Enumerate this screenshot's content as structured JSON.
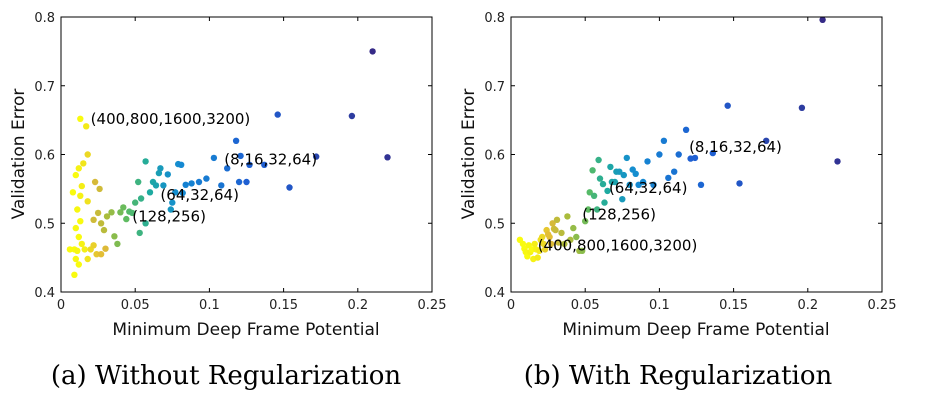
{
  "chart_data": [
    {
      "type": "scatter",
      "caption": "(a) Without Regularization",
      "xlabel": "Minimum Deep Frame Potential",
      "ylabel": "Validation Error",
      "xlim": [
        0,
        0.25
      ],
      "ylim": [
        0.4,
        0.8
      ],
      "xticks": [
        "0",
        "0.05",
        "0.1",
        "0.15",
        "0.2",
        "0.25"
      ],
      "yticks": [
        "0.4",
        "0.5",
        "0.6",
        "0.7",
        "0.8"
      ],
      "annotations": [
        {
          "text": "(400,800,1600,3200)",
          "x": 0.02,
          "y": 0.652
        },
        {
          "text": "(8,16,32,64)",
          "x": 0.11,
          "y": 0.593
        },
        {
          "text": "(64,32,64)",
          "x": 0.067,
          "y": 0.541
        },
        {
          "text": "(128,256)",
          "x": 0.048,
          "y": 0.51
        }
      ],
      "points": [
        [
          0.013,
          0.652,
          0.0
        ],
        [
          0.017,
          0.641,
          0.04
        ],
        [
          0.018,
          0.6,
          0.08
        ],
        [
          0.015,
          0.587,
          0.05
        ],
        [
          0.012,
          0.58,
          0.02
        ],
        [
          0.01,
          0.57,
          0.0
        ],
        [
          0.014,
          0.554,
          0.03
        ],
        [
          0.008,
          0.545,
          0.0
        ],
        [
          0.013,
          0.54,
          0.02
        ],
        [
          0.018,
          0.532,
          0.06
        ],
        [
          0.011,
          0.52,
          0.01
        ],
        [
          0.013,
          0.503,
          0.0
        ],
        [
          0.01,
          0.493,
          0.01
        ],
        [
          0.012,
          0.48,
          0.0
        ],
        [
          0.014,
          0.47,
          0.02
        ],
        [
          0.006,
          0.462,
          0.0
        ],
        [
          0.009,
          0.462,
          0.0
        ],
        [
          0.011,
          0.46,
          0.01
        ],
        [
          0.016,
          0.462,
          0.03
        ],
        [
          0.01,
          0.448,
          0.01
        ],
        [
          0.012,
          0.44,
          0.0
        ],
        [
          0.009,
          0.425,
          0.0
        ],
        [
          0.018,
          0.448,
          0.05
        ],
        [
          0.02,
          0.462,
          0.08
        ],
        [
          0.022,
          0.468,
          0.1
        ],
        [
          0.024,
          0.455,
          0.12
        ],
        [
          0.027,
          0.455,
          0.14
        ],
        [
          0.03,
          0.463,
          0.16
        ],
        [
          0.023,
          0.56,
          0.18
        ],
        [
          0.026,
          0.55,
          0.2
        ],
        [
          0.022,
          0.505,
          0.2
        ],
        [
          0.025,
          0.515,
          0.22
        ],
        [
          0.027,
          0.5,
          0.24
        ],
        [
          0.029,
          0.49,
          0.26
        ],
        [
          0.031,
          0.51,
          0.3
        ],
        [
          0.034,
          0.516,
          0.34
        ],
        [
          0.036,
          0.481,
          0.36
        ],
        [
          0.038,
          0.47,
          0.38
        ],
        [
          0.04,
          0.516,
          0.4
        ],
        [
          0.042,
          0.523,
          0.42
        ],
        [
          0.044,
          0.506,
          0.44
        ],
        [
          0.046,
          0.517,
          0.46
        ],
        [
          0.048,
          0.515,
          0.48
        ],
        [
          0.05,
          0.53,
          0.5
        ],
        [
          0.052,
          0.56,
          0.52
        ],
        [
          0.054,
          0.536,
          0.54
        ],
        [
          0.053,
          0.486,
          0.52
        ],
        [
          0.057,
          0.5,
          0.56
        ],
        [
          0.057,
          0.59,
          0.58
        ],
        [
          0.06,
          0.545,
          0.6
        ],
        [
          0.062,
          0.56,
          0.62
        ],
        [
          0.064,
          0.555,
          0.64
        ],
        [
          0.066,
          0.573,
          0.66
        ],
        [
          0.067,
          0.58,
          0.68
        ],
        [
          0.069,
          0.555,
          0.7
        ],
        [
          0.072,
          0.571,
          0.72
        ],
        [
          0.074,
          0.52,
          0.7
        ],
        [
          0.075,
          0.53,
          0.72
        ],
        [
          0.077,
          0.545,
          0.74
        ],
        [
          0.079,
          0.586,
          0.74
        ],
        [
          0.081,
          0.585,
          0.76
        ],
        [
          0.082,
          0.544,
          0.76
        ],
        [
          0.084,
          0.556,
          0.78
        ],
        [
          0.088,
          0.558,
          0.78
        ],
        [
          0.093,
          0.56,
          0.8
        ],
        [
          0.098,
          0.565,
          0.8
        ],
        [
          0.103,
          0.595,
          0.8
        ],
        [
          0.108,
          0.555,
          0.82
        ],
        [
          0.112,
          0.58,
          0.84
        ],
        [
          0.118,
          0.62,
          0.86
        ],
        [
          0.12,
          0.56,
          0.86
        ],
        [
          0.121,
          0.598,
          0.86
        ],
        [
          0.125,
          0.56,
          0.88
        ],
        [
          0.127,
          0.585,
          0.88
        ],
        [
          0.137,
          0.585,
          0.88
        ],
        [
          0.146,
          0.658,
          0.9
        ],
        [
          0.154,
          0.552,
          0.9
        ],
        [
          0.172,
          0.597,
          0.94
        ],
        [
          0.196,
          0.656,
          0.96
        ],
        [
          0.21,
          0.75,
          1.0
        ],
        [
          0.22,
          0.596,
          0.98
        ]
      ]
    },
    {
      "type": "scatter",
      "caption": "(b) With Regularization",
      "xlabel": "Minimum Deep Frame Potential",
      "ylabel": "Validation Error",
      "xlim": [
        0,
        0.25
      ],
      "ylim": [
        0.4,
        0.8
      ],
      "xticks": [
        "0",
        "0.05",
        "0.1",
        "0.15",
        "0.2",
        "0.25"
      ],
      "yticks": [
        "0.4",
        "0.5",
        "0.6",
        "0.7",
        "0.8"
      ],
      "annotations": [
        {
          "text": "(8,16,32,64)",
          "x": 0.12,
          "y": 0.611
        },
        {
          "text": "(64,32,64)",
          "x": 0.066,
          "y": 0.551
        },
        {
          "text": "(128,256)",
          "x": 0.048,
          "y": 0.513
        },
        {
          "text": "(400,800,1600,3200)",
          "x": 0.018,
          "y": 0.468
        }
      ],
      "points": [
        [
          0.006,
          0.476,
          0.0
        ],
        [
          0.008,
          0.47,
          0.0
        ],
        [
          0.009,
          0.463,
          0.0
        ],
        [
          0.01,
          0.458,
          0.01
        ],
        [
          0.011,
          0.452,
          0.0
        ],
        [
          0.012,
          0.468,
          0.01
        ],
        [
          0.013,
          0.458,
          0.02
        ],
        [
          0.014,
          0.462,
          0.0
        ],
        [
          0.015,
          0.448,
          0.02
        ],
        [
          0.016,
          0.47,
          0.03
        ],
        [
          0.017,
          0.462,
          0.02
        ],
        [
          0.018,
          0.45,
          0.04
        ],
        [
          0.019,
          0.46,
          0.04
        ],
        [
          0.02,
          0.476,
          0.06
        ],
        [
          0.021,
          0.48,
          0.08
        ],
        [
          0.022,
          0.47,
          0.08
        ],
        [
          0.023,
          0.462,
          0.1
        ],
        [
          0.024,
          0.49,
          0.12
        ],
        [
          0.025,
          0.484,
          0.14
        ],
        [
          0.026,
          0.48,
          0.14
        ],
        [
          0.027,
          0.47,
          0.16
        ],
        [
          0.028,
          0.5,
          0.18
        ],
        [
          0.029,
          0.492,
          0.2
        ],
        [
          0.03,
          0.49,
          0.22
        ],
        [
          0.031,
          0.505,
          0.24
        ],
        [
          0.032,
          0.472,
          0.22
        ],
        [
          0.034,
          0.486,
          0.26
        ],
        [
          0.036,
          0.47,
          0.28
        ],
        [
          0.038,
          0.51,
          0.3
        ],
        [
          0.04,
          0.476,
          0.3
        ],
        [
          0.042,
          0.493,
          0.34
        ],
        [
          0.044,
          0.48,
          0.36
        ],
        [
          0.046,
          0.46,
          0.32
        ],
        [
          0.048,
          0.46,
          0.36
        ],
        [
          0.05,
          0.503,
          0.4
        ],
        [
          0.052,
          0.52,
          0.44
        ],
        [
          0.053,
          0.545,
          0.46
        ],
        [
          0.055,
          0.577,
          0.48
        ],
        [
          0.056,
          0.54,
          0.5
        ],
        [
          0.058,
          0.52,
          0.52
        ],
        [
          0.059,
          0.592,
          0.54
        ],
        [
          0.06,
          0.565,
          0.56
        ],
        [
          0.062,
          0.557,
          0.58
        ],
        [
          0.063,
          0.53,
          0.58
        ],
        [
          0.065,
          0.547,
          0.6
        ],
        [
          0.067,
          0.582,
          0.62
        ],
        [
          0.068,
          0.56,
          0.62
        ],
        [
          0.07,
          0.56,
          0.64
        ],
        [
          0.071,
          0.575,
          0.66
        ],
        [
          0.073,
          0.575,
          0.68
        ],
        [
          0.075,
          0.535,
          0.68
        ],
        [
          0.076,
          0.57,
          0.7
        ],
        [
          0.078,
          0.595,
          0.72
        ],
        [
          0.08,
          0.556,
          0.72
        ],
        [
          0.082,
          0.578,
          0.74
        ],
        [
          0.084,
          0.572,
          0.74
        ],
        [
          0.086,
          0.556,
          0.76
        ],
        [
          0.089,
          0.56,
          0.76
        ],
        [
          0.092,
          0.59,
          0.78
        ],
        [
          0.096,
          0.556,
          0.78
        ],
        [
          0.1,
          0.6,
          0.8
        ],
        [
          0.103,
          0.62,
          0.8
        ],
        [
          0.106,
          0.566,
          0.82
        ],
        [
          0.11,
          0.575,
          0.82
        ],
        [
          0.113,
          0.6,
          0.84
        ],
        [
          0.118,
          0.636,
          0.86
        ],
        [
          0.121,
          0.594,
          0.88
        ],
        [
          0.124,
          0.595,
          0.88
        ],
        [
          0.128,
          0.556,
          0.86
        ],
        [
          0.136,
          0.602,
          0.88
        ],
        [
          0.146,
          0.671,
          0.9
        ],
        [
          0.154,
          0.558,
          0.9
        ],
        [
          0.172,
          0.62,
          0.94
        ],
        [
          0.196,
          0.668,
          0.96
        ],
        [
          0.21,
          0.796,
          1.0
        ],
        [
          0.22,
          0.59,
          0.98
        ]
      ]
    }
  ]
}
